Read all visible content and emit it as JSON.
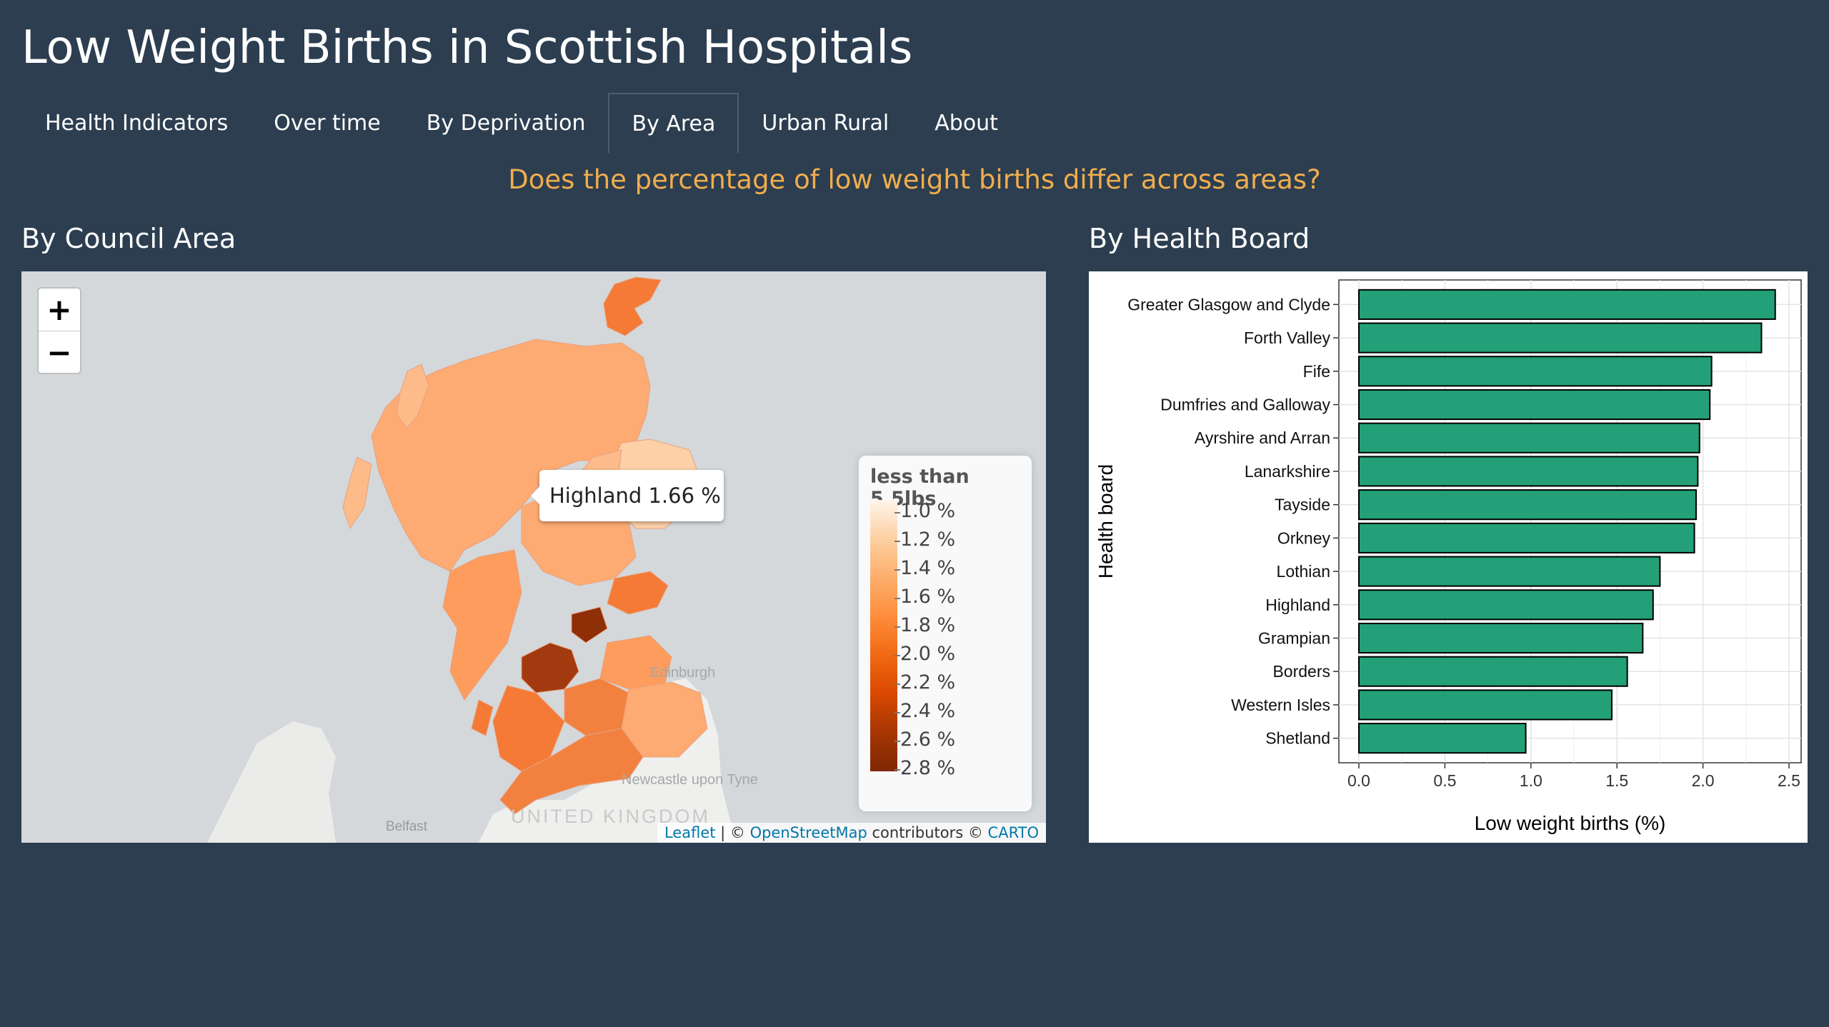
{
  "app": {
    "title": "Low Weight Births in Scottish Hospitals",
    "question": "Does the percentage of low weight births differ across areas?",
    "accent_color": "#f0ad4e",
    "background_color": "#2c3e50"
  },
  "nav": {
    "tabs": [
      {
        "label": "Health Indicators",
        "active": false
      },
      {
        "label": "Over time",
        "active": false
      },
      {
        "label": "By Deprivation",
        "active": false
      },
      {
        "label": "By Area",
        "active": true
      },
      {
        "label": "Urban Rural",
        "active": false
      },
      {
        "label": "About",
        "active": false
      }
    ]
  },
  "map_section": {
    "title": "By Council Area",
    "zoom_in": "+",
    "zoom_out": "−",
    "tooltip": "Highland 1.66 %",
    "place_labels": [
      "Edinburgh",
      "Newcastle upon Tyne",
      "Belfast",
      "UNITED KINGDOM"
    ],
    "legend": {
      "title": "less than 5.5lbs",
      "labels": [
        "1.0 %",
        "1.2 %",
        "1.4 %",
        "1.6 %",
        "1.8 %",
        "2.0 %",
        "2.2 %",
        "2.4 %",
        "2.6 %",
        "2.8 %"
      ],
      "color_low": "#fff5eb",
      "color_high": "#7f2704"
    },
    "attribution": {
      "leaflet": "Leaflet",
      "sep": " | © ",
      "osm": "OpenStreetMap",
      "contributors": " contributors © ",
      "carto": "CARTO"
    }
  },
  "chart_section": {
    "title": "By Health Board"
  },
  "chart_data": {
    "type": "bar",
    "orientation": "horizontal",
    "categories": [
      "Greater Glasgow and Clyde",
      "Forth Valley",
      "Fife",
      "Dumfries and Galloway",
      "Ayrshire and Arran",
      "Lanarkshire",
      "Tayside",
      "Orkney",
      "Lothian",
      "Highland",
      "Grampian",
      "Borders",
      "Western Isles",
      "Shetland"
    ],
    "values": [
      2.42,
      2.34,
      2.05,
      2.04,
      1.98,
      1.97,
      1.96,
      1.95,
      1.75,
      1.71,
      1.65,
      1.56,
      1.47,
      0.97
    ],
    "xlabel": "Low weight births (%)",
    "ylabel": "Health board",
    "xlim": [
      0,
      2.5
    ],
    "xticks": [
      "0.0",
      "0.5",
      "1.0",
      "1.5",
      "2.0",
      "2.5"
    ],
    "bar_color": "#23a077",
    "grid": true
  }
}
